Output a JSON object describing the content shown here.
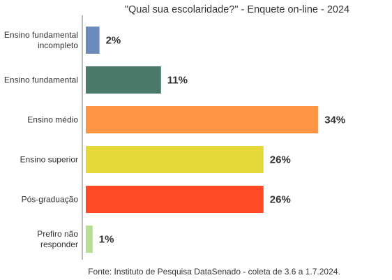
{
  "chart_data": {
    "type": "bar",
    "orientation": "horizontal",
    "title": "\"Qual sua escolaridade?\" - Enquete on-line - 2024",
    "categories": [
      [
        "Ensino fundamental",
        "incompleto"
      ],
      [
        "Ensino fundamental"
      ],
      [
        "Ensino médio"
      ],
      [
        "Ensino superior"
      ],
      [
        "Pós-graduação"
      ],
      [
        "Prefiro não",
        "responder"
      ]
    ],
    "values": [
      2,
      11,
      34,
      26,
      26,
      1
    ],
    "value_labels": [
      "2%",
      "11%",
      "34%",
      "26%",
      "26%",
      "1%"
    ],
    "colors": [
      "#6b8cba",
      "#4a7a6a",
      "#ff9442",
      "#e5d93a",
      "#ff4a25",
      "#b8dd95"
    ],
    "xlim": [
      0,
      40
    ],
    "grid": false,
    "legend": "none",
    "source": "Fonte: Instituto de Pesquisa DataSenado - coleta de 3.6 a 1.7.2024."
  }
}
